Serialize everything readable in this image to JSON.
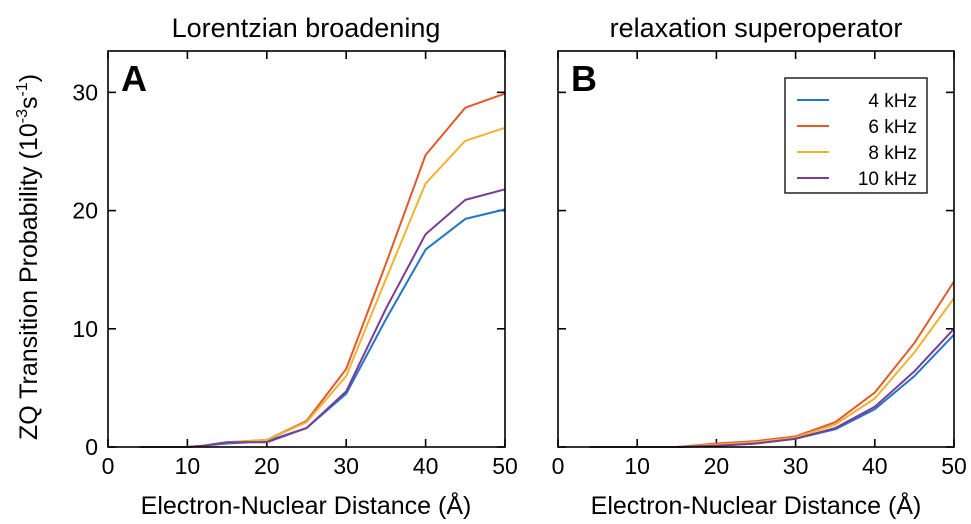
{
  "chart_data": [
    {
      "panel": "A",
      "type": "line",
      "title": "Lorentzian broadening",
      "xlabel": "Electron-Nuclear Distance (Å)",
      "ylabel": "ZQ Transition Probability (10",
      "ylabel_exp1": "-3",
      "ylabel_unit": "s",
      "ylabel_exp2": "-1",
      "ylabel_close": ")",
      "xlim": [
        0,
        50
      ],
      "ylim": [
        0,
        33.5
      ],
      "xticks": [
        "0",
        "10",
        "20",
        "30",
        "40",
        "50"
      ],
      "yticks": [
        "0",
        "10",
        "20",
        "30"
      ],
      "x": [
        4,
        10,
        12,
        15,
        20,
        25,
        30,
        35,
        40,
        45,
        50
      ],
      "series": [
        {
          "name": "4 kHz",
          "color": "#1f77c8",
          "values": [
            0,
            0,
            0.1,
            0.3,
            0.5,
            1.6,
            4.5,
            10.8,
            16.7,
            19.3,
            20.1
          ]
        },
        {
          "name": "6 kHz",
          "color": "#e05a2b",
          "values": [
            0,
            0,
            0.1,
            0.4,
            0.6,
            2.2,
            6.6,
            15.5,
            24.7,
            28.7,
            29.9
          ]
        },
        {
          "name": "8 kHz",
          "color": "#f2b230",
          "values": [
            0,
            0,
            0.1,
            0.4,
            0.6,
            2.1,
            6.0,
            14.2,
            22.3,
            25.9,
            27.0
          ]
        },
        {
          "name": "10 kHz",
          "color": "#7a3c95",
          "values": [
            0,
            0,
            0.1,
            0.4,
            0.4,
            1.6,
            4.7,
            11.7,
            18.0,
            20.9,
            21.8
          ]
        }
      ]
    },
    {
      "panel": "B",
      "type": "line",
      "title": "relaxation superoperator",
      "xlabel": "Electron-Nuclear Distance (Å)",
      "xlim": [
        0,
        50
      ],
      "ylim": [
        0,
        33.5
      ],
      "xticks": [
        "0",
        "10",
        "20",
        "30",
        "40",
        "50"
      ],
      "legend_position": "top-right",
      "x": [
        4,
        10,
        15,
        20,
        25,
        30,
        35,
        40,
        45,
        50
      ],
      "series": [
        {
          "name": "4 kHz",
          "color": "#1f77c8",
          "values": [
            0,
            0,
            0,
            0.1,
            0.3,
            0.7,
            1.5,
            3.2,
            6.0,
            9.5
          ]
        },
        {
          "name": "6 kHz",
          "color": "#e05a2b",
          "values": [
            0,
            0,
            0,
            0.3,
            0.5,
            0.9,
            2.1,
            4.6,
            8.8,
            14.0
          ]
        },
        {
          "name": "8 kHz",
          "color": "#f2b230",
          "values": [
            0,
            0,
            0,
            0.2,
            0.4,
            0.8,
            1.9,
            4.1,
            8.0,
            12.6
          ]
        },
        {
          "name": "10 kHz",
          "color": "#7a3c95",
          "values": [
            0,
            0,
            0,
            0.1,
            0.3,
            0.7,
            1.6,
            3.4,
            6.4,
            10.0
          ]
        }
      ]
    }
  ]
}
